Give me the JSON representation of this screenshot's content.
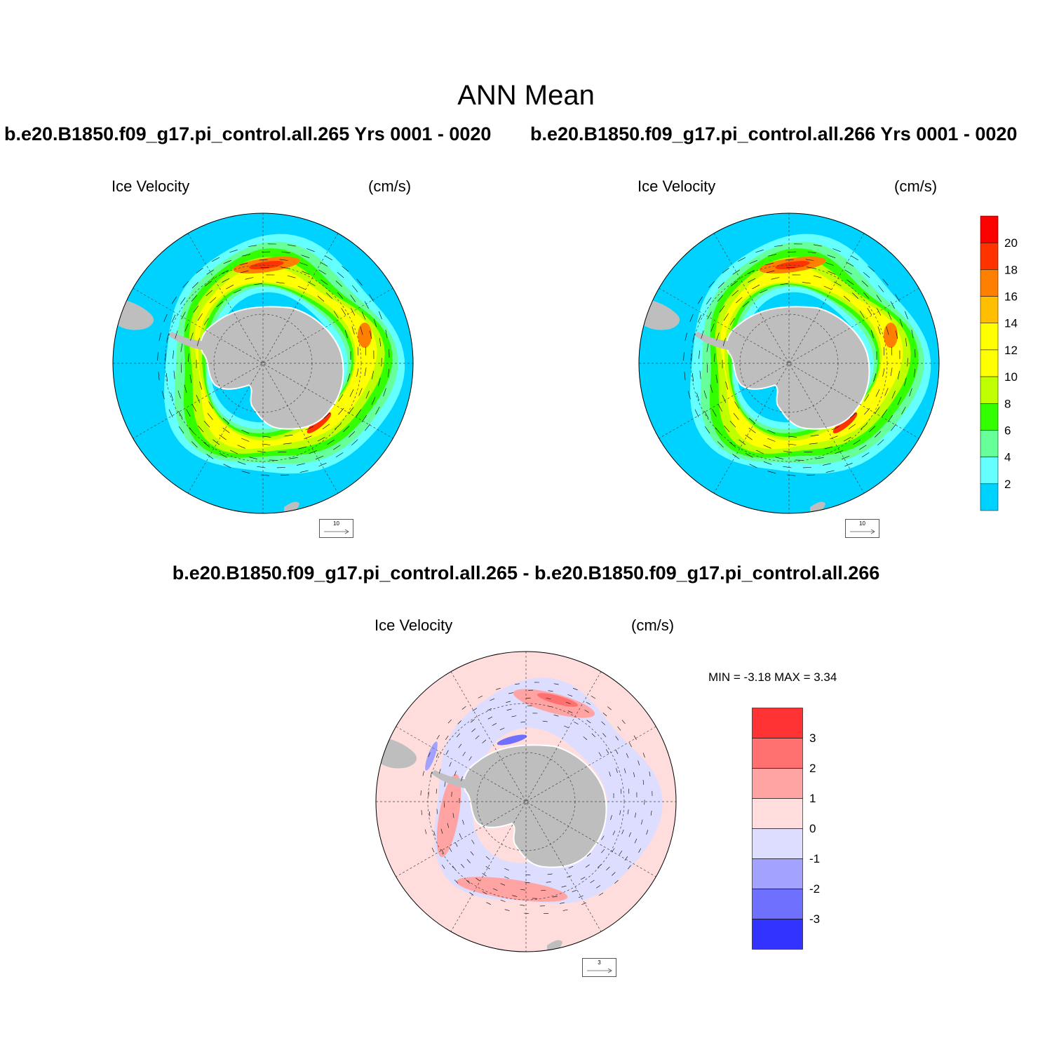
{
  "main_title": "ANN Mean",
  "panels": [
    {
      "id": "case265",
      "title": "b.e20.B1850.f09_g17.pi_control.all.265  Yrs 0001 - 0020",
      "field_label": "Ice Velocity",
      "units": "(cm/s)",
      "ref_vector": "10"
    },
    {
      "id": "case266",
      "title": "b.e20.B1850.f09_g17.pi_control.all.266  Yrs 0001 - 0020",
      "field_label": "Ice Velocity",
      "units": "(cm/s)",
      "ref_vector": "10"
    },
    {
      "id": "difference",
      "title": "b.e20.B1850.f09_g17.pi_control.all.265 - b.e20.B1850.f09_g17.pi_control.all.266",
      "field_label": "Ice Velocity",
      "units": "(cm/s)",
      "ref_vector": "3",
      "min_max": "MIN =  -3.18 MAX =   3.34"
    }
  ],
  "colorbar_main": {
    "labels": [
      "20",
      "18",
      "16",
      "14",
      "12",
      "10",
      "8",
      "6",
      "4",
      "2"
    ],
    "colors": [
      "#ff0000",
      "#ff3300",
      "#ff7f00",
      "#ffbf00",
      "#ffff00",
      "#ffff00",
      "#bfff00",
      "#33ff00",
      "#66ff99",
      "#66ffff",
      "#00d2ff"
    ]
  },
  "colorbar_diff": {
    "labels": [
      "3",
      "2",
      "1",
      "0",
      "-1",
      "-2",
      "-3"
    ],
    "colors": [
      "#ff3333",
      "#ff7070",
      "#ffa3a3",
      "#ffdddd",
      "#ddddff",
      "#a3a3ff",
      "#7070ff",
      "#3333ff"
    ]
  },
  "map_colors": {
    "ocean_main": "#00d2ff",
    "ocean_diff": "#ffdddd",
    "land": "#bebebe"
  }
}
